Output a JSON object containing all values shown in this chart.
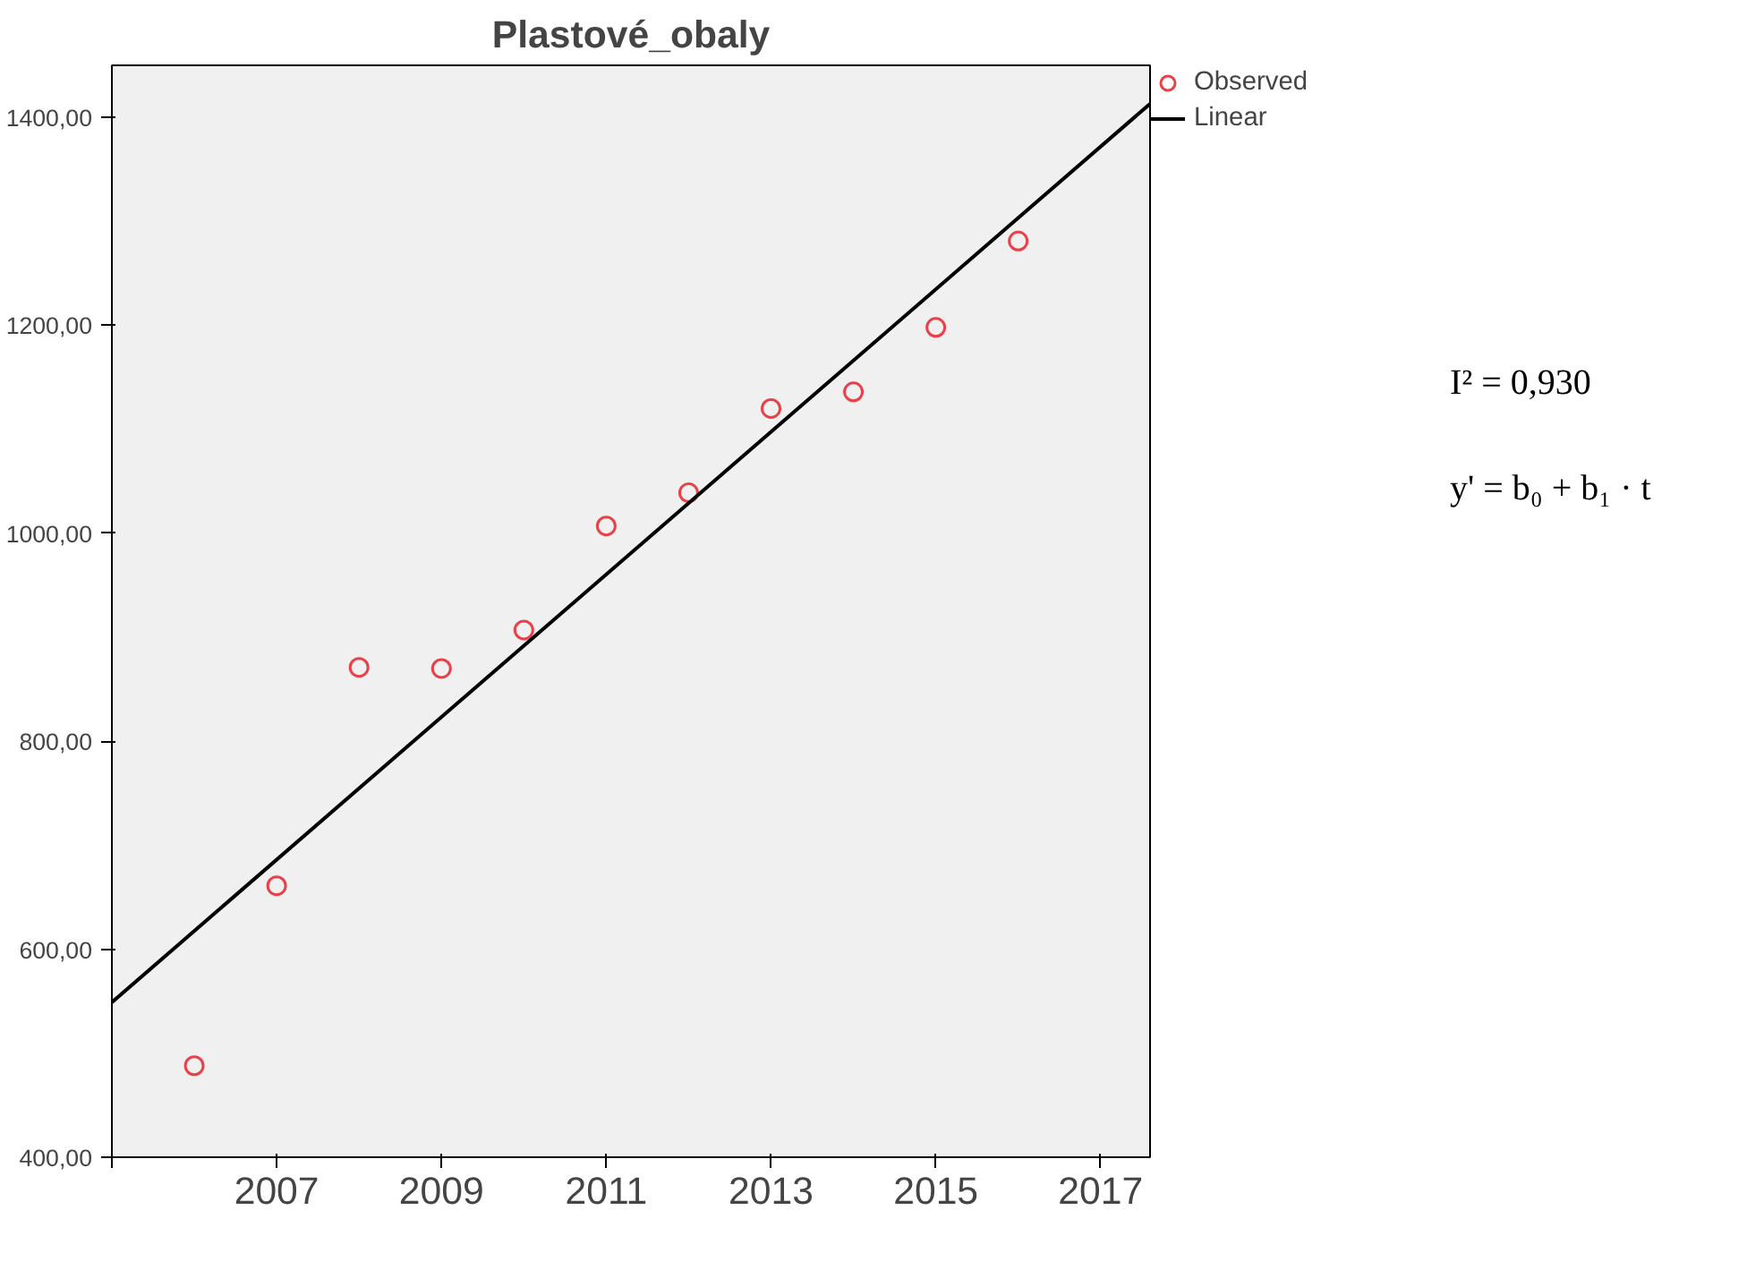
{
  "chart_data": {
    "type": "scatter",
    "title": "Plastové_obaly",
    "x": [
      2006,
      2007,
      2008,
      2009,
      2010,
      2011,
      2012,
      2013,
      2014,
      2015,
      2016
    ],
    "series": [
      {
        "name": "Observed",
        "color": "#e8414a",
        "marker": "circle",
        "values": [
          488,
          661,
          871,
          870,
          907,
          1007,
          1039,
          1120,
          1136,
          1198,
          1281
        ]
      },
      {
        "name": "Linear",
        "type": "line",
        "color": "#000000",
        "x": [
          2005,
          2017.6
        ],
        "values": [
          549,
          1413
        ]
      }
    ],
    "xlim": [
      2005,
      2017.6
    ],
    "xticks": [
      {
        "value": 2005,
        "label": null
      },
      2007,
      2009,
      2011,
      2013,
      2015,
      2017
    ],
    "ylim": [
      400,
      1450
    ],
    "yticks": [
      {
        "value": 400,
        "label": "400,00"
      },
      {
        "value": 600,
        "label": "600,00"
      },
      {
        "value": 800,
        "label": "800,00"
      },
      {
        "value": 1000,
        "label": "1000,00"
      },
      {
        "value": 1200,
        "label": "1200,00"
      },
      {
        "value": 1400,
        "label": "1400,00"
      }
    ],
    "grid": false,
    "legend": "top right",
    "annotations": [
      "I² = 0,930",
      "y' = b₀ + b₁ · t"
    ]
  }
}
